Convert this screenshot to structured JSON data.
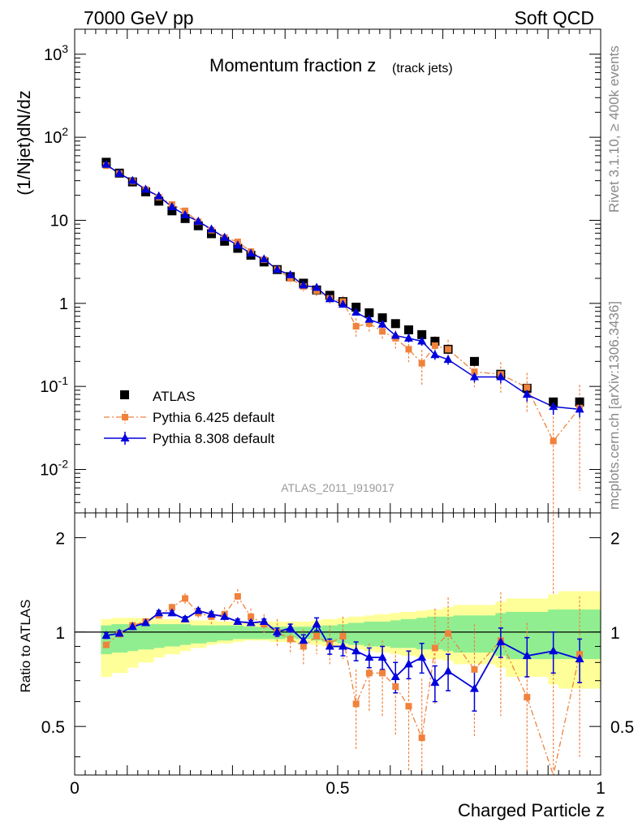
{
  "header": {
    "left": "7000 GeV pp",
    "right": "Soft QCD"
  },
  "side_text": {
    "rivet": "Rivet 3.1.10, ≥ 400k events",
    "source": "mcplots.cern.ch [arXiv:1306.3436]"
  },
  "chart_data": [
    {
      "type": "scatter",
      "panel": "main",
      "title_main": "Momentum fraction z",
      "title_sub": "(track jets)",
      "ylabel": "(1/Njet)dN/dz",
      "analysis_tag": "ATLAS_2011_I919017",
      "yscale": "log",
      "xlim": [
        0,
        1
      ],
      "ylim": [
        0.003,
        2000
      ],
      "y_tick_labels": [
        "10^-2",
        "10^-1",
        "1",
        "10",
        "10^2",
        "10^3"
      ],
      "x": [
        0.06,
        0.085,
        0.11,
        0.135,
        0.16,
        0.185,
        0.21,
        0.235,
        0.26,
        0.285,
        0.31,
        0.335,
        0.36,
        0.385,
        0.41,
        0.435,
        0.46,
        0.485,
        0.51,
        0.535,
        0.56,
        0.585,
        0.61,
        0.635,
        0.66,
        0.685,
        0.71,
        0.76,
        0.81,
        0.86,
        0.91,
        0.96
      ],
      "legend": [
        {
          "label": "ATLAS",
          "color": "#000000",
          "marker": "square"
        },
        {
          "label": "Pythia 6.425 default",
          "color": "#f0823c",
          "marker": "square"
        },
        {
          "label": "Pythia 8.308 default",
          "color": "#0000dd",
          "marker": "triangle"
        }
      ],
      "series": [
        {
          "name": "ATLAS",
          "color": "#000000",
          "values": [
            50,
            37,
            29,
            22,
            17,
            13,
            10.5,
            8.6,
            6.9,
            5.6,
            4.6,
            3.8,
            3.15,
            2.55,
            2.1,
            1.75,
            1.45,
            1.25,
            1.05,
            0.9,
            0.77,
            0.67,
            0.57,
            0.48,
            0.42,
            0.35,
            0.28,
            0.2,
            0.14,
            0.095,
            0.065,
            0.065
          ]
        },
        {
          "name": "Pythia 6.425 default",
          "color": "#f0823c",
          "values": [
            45.5,
            36.5,
            29.5,
            23.5,
            19,
            15.5,
            13,
            9.6,
            7.6,
            6.2,
            5.5,
            4.2,
            3.35,
            2.55,
            2.0,
            1.6,
            1.42,
            1.15,
            1.05,
            0.53,
            0.57,
            0.46,
            0.38,
            0.28,
            0.19,
            0.31,
            0.28,
            0.15,
            0.14,
            0.097,
            0.022,
            0.055
          ]
        },
        {
          "name": "Pythia 8.308 default",
          "color": "#0000dd",
          "values": [
            47,
            36.5,
            30,
            23.5,
            19.5,
            14.5,
            11.6,
            9.7,
            7.8,
            6.2,
            5.0,
            4.0,
            3.4,
            2.55,
            2.2,
            1.65,
            1.55,
            1.13,
            0.97,
            0.78,
            0.64,
            0.56,
            0.41,
            0.38,
            0.35,
            0.24,
            0.21,
            0.13,
            0.13,
            0.08,
            0.057,
            0.053
          ]
        }
      ],
      "errors": {
        "Pythia 6.425 default": [
          0.02,
          0.02,
          0.02,
          0.02,
          0.03,
          0.03,
          0.03,
          0.04,
          0.05,
          0.06,
          0.06,
          0.07,
          0.08,
          0.1,
          0.12,
          0.13,
          0.15,
          0.15,
          0.17,
          0.25,
          0.2,
          0.22,
          0.25,
          0.3,
          0.45,
          0.3,
          0.3,
          0.35,
          0.4,
          0.5,
          1.2,
          0.9
        ],
        "Pythia 8.308 default": [
          0.01,
          0.01,
          0.01,
          0.01,
          0.01,
          0.01,
          0.02,
          0.02,
          0.02,
          0.03,
          0.03,
          0.03,
          0.04,
          0.04,
          0.05,
          0.05,
          0.06,
          0.06,
          0.07,
          0.08,
          0.09,
          0.1,
          0.1,
          0.11,
          0.12,
          0.13,
          0.13,
          0.14,
          0.16,
          0.18,
          0.2,
          0.2
        ]
      }
    },
    {
      "type": "scatter",
      "panel": "ratio",
      "ylabel": "Ratio to ATLAS",
      "xlabel": "Charged Particle z",
      "xlim": [
        0,
        1
      ],
      "ylim": [
        0.35,
        2.4
      ],
      "x_tick_labels": [
        "0",
        "0.5",
        "1"
      ],
      "y_tick_labels": [
        "0.5",
        "1",
        "2"
      ],
      "x": [
        0.06,
        0.085,
        0.11,
        0.135,
        0.16,
        0.185,
        0.21,
        0.235,
        0.26,
        0.285,
        0.31,
        0.335,
        0.36,
        0.385,
        0.41,
        0.435,
        0.46,
        0.485,
        0.51,
        0.535,
        0.56,
        0.585,
        0.61,
        0.635,
        0.66,
        0.685,
        0.71,
        0.76,
        0.81,
        0.86,
        0.91,
        0.96
      ],
      "series": [
        {
          "name": "Pythia 6.425 default",
          "color": "#f0823c",
          "values": [
            0.91,
            0.985,
            1.05,
            1.08,
            1.13,
            1.2,
            1.28,
            1.15,
            1.12,
            1.14,
            1.3,
            1.12,
            1.06,
            1.0,
            0.95,
            0.9,
            0.97,
            0.92,
            0.97,
            0.59,
            0.74,
            0.74,
            0.67,
            0.58,
            0.46,
            0.89,
            0.99,
            0.76,
            0.94,
            0.62,
            0.33,
            0.85
          ],
          "err_hi": [
            0.02,
            0.02,
            0.02,
            0.02,
            0.03,
            0.03,
            0.05,
            0.05,
            0.06,
            0.06,
            0.07,
            0.07,
            0.08,
            0.1,
            0.1,
            0.12,
            0.12,
            0.13,
            0.15,
            0.17,
            0.18,
            0.2,
            0.2,
            0.22,
            0.25,
            0.3,
            0.3,
            0.3,
            0.4,
            0.45,
            0.5,
            0.45
          ],
          "err_lo": [
            0.02,
            0.02,
            0.02,
            0.02,
            0.03,
            0.03,
            0.05,
            0.05,
            0.06,
            0.06,
            0.07,
            0.07,
            0.08,
            0.1,
            0.1,
            0.12,
            0.12,
            0.13,
            0.15,
            0.17,
            0.18,
            0.2,
            0.2,
            0.22,
            0.25,
            0.3,
            0.3,
            0.3,
            0.4,
            0.45,
            0.5,
            0.45
          ]
        },
        {
          "name": "Pythia 8.308 default",
          "color": "#0000dd",
          "values": [
            0.975,
            0.99,
            1.04,
            1.07,
            1.15,
            1.15,
            1.1,
            1.17,
            1.14,
            1.12,
            1.08,
            1.07,
            1.08,
            1.0,
            1.03,
            0.94,
            1.06,
            0.9,
            0.9,
            0.87,
            0.83,
            0.83,
            0.72,
            0.79,
            0.83,
            0.69,
            0.75,
            0.66,
            0.93,
            0.84,
            0.87,
            0.82
          ],
          "err_hi": [
            0.02,
            0.02,
            0.02,
            0.02,
            0.02,
            0.02,
            0.02,
            0.02,
            0.02,
            0.02,
            0.02,
            0.02,
            0.02,
            0.03,
            0.03,
            0.04,
            0.05,
            0.05,
            0.06,
            0.06,
            0.06,
            0.07,
            0.08,
            0.08,
            0.09,
            0.09,
            0.1,
            0.1,
            0.1,
            0.12,
            0.13,
            0.13
          ],
          "err_lo": [
            0.02,
            0.02,
            0.02,
            0.02,
            0.02,
            0.02,
            0.02,
            0.02,
            0.02,
            0.02,
            0.02,
            0.02,
            0.02,
            0.03,
            0.03,
            0.04,
            0.05,
            0.05,
            0.06,
            0.06,
            0.06,
            0.07,
            0.08,
            0.08,
            0.09,
            0.09,
            0.1,
            0.1,
            0.1,
            0.12,
            0.13,
            0.13
          ]
        }
      ],
      "bands": {
        "edges": [
          0.05,
          0.07,
          0.1,
          0.12,
          0.15,
          0.17,
          0.2,
          0.22,
          0.25,
          0.27,
          0.3,
          0.32,
          0.35,
          0.37,
          0.4,
          0.42,
          0.45,
          0.47,
          0.5,
          0.52,
          0.55,
          0.57,
          0.6,
          0.62,
          0.65,
          0.67,
          0.7,
          0.72,
          0.8,
          0.82,
          0.9,
          0.92,
          1.0
        ],
        "green_lo": [
          0.85,
          0.86,
          0.87,
          0.88,
          0.89,
          0.9,
          0.91,
          0.92,
          0.93,
          0.94,
          0.95,
          0.95,
          0.95,
          0.95,
          0.96,
          0.95,
          0.94,
          0.93,
          0.92,
          0.91,
          0.9,
          0.9,
          0.89,
          0.89,
          0.88,
          0.88,
          0.87,
          0.86,
          0.84,
          0.82,
          0.82,
          0.82
        ],
        "green_hi": [
          1.05,
          1.06,
          1.06,
          1.06,
          1.06,
          1.06,
          1.06,
          1.05,
          1.05,
          1.05,
          1.05,
          1.04,
          1.04,
          1.04,
          1.04,
          1.04,
          1.04,
          1.05,
          1.06,
          1.07,
          1.08,
          1.08,
          1.09,
          1.1,
          1.11,
          1.12,
          1.12,
          1.13,
          1.15,
          1.16,
          1.18,
          1.18
        ],
        "yellow_lo": [
          0.72,
          0.74,
          0.77,
          0.8,
          0.83,
          0.85,
          0.87,
          0.89,
          0.91,
          0.92,
          0.93,
          0.94,
          0.94,
          0.93,
          0.93,
          0.92,
          0.91,
          0.9,
          0.89,
          0.88,
          0.87,
          0.86,
          0.85,
          0.84,
          0.83,
          0.82,
          0.81,
          0.79,
          0.77,
          0.72,
          0.68,
          0.66
        ],
        "yellow_hi": [
          1.1,
          1.11,
          1.11,
          1.11,
          1.1,
          1.1,
          1.1,
          1.09,
          1.09,
          1.08,
          1.08,
          1.08,
          1.08,
          1.08,
          1.08,
          1.08,
          1.09,
          1.1,
          1.11,
          1.12,
          1.13,
          1.14,
          1.15,
          1.16,
          1.17,
          1.18,
          1.2,
          1.22,
          1.25,
          1.28,
          1.32,
          1.35
        ]
      }
    }
  ]
}
